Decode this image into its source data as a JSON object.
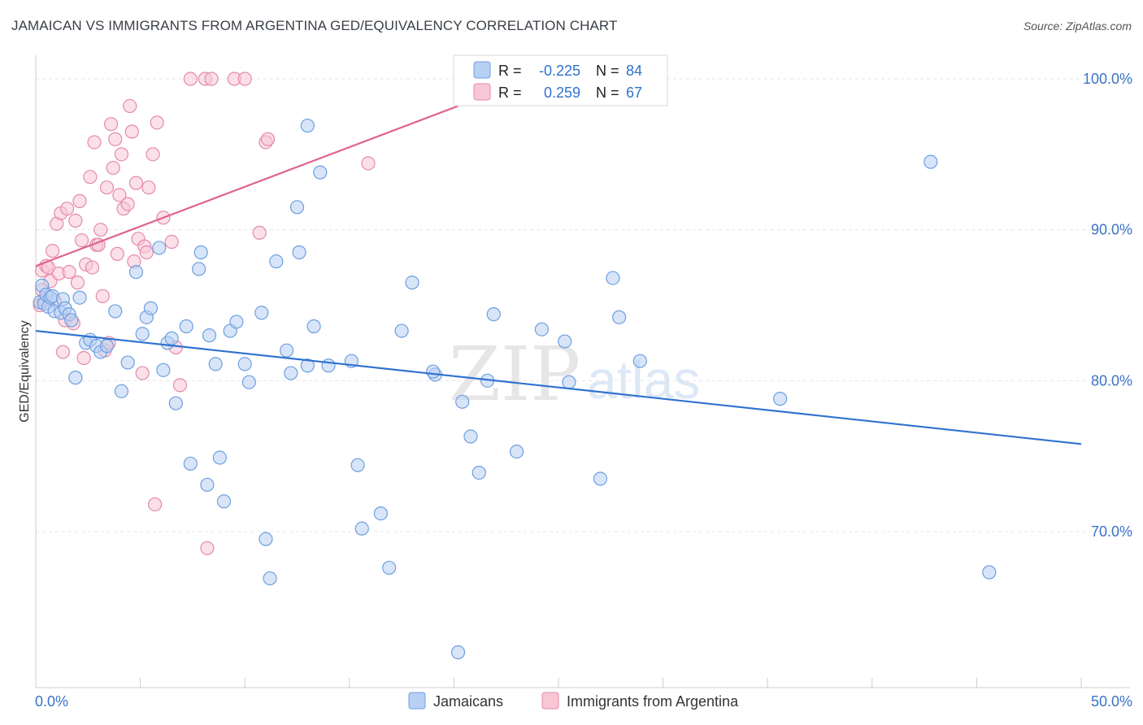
{
  "header": {
    "title": "JAMAICAN VS IMMIGRANTS FROM ARGENTINA GED/EQUIVALENCY CORRELATION CHART",
    "source": "Source: ZipAtlas.com"
  },
  "watermark": {
    "zip": "ZIP",
    "atlas": "atlas"
  },
  "colors": {
    "blue_fill": "#b8d0f3",
    "blue_stroke": "#6d9fe0",
    "blue_line": "#2f72d0",
    "pink_fill": "#f8c7d6",
    "pink_stroke": "#e48aa8",
    "pink_line": "#e0648e",
    "value_text": "#2f72d0"
  },
  "legend_box": {
    "rows": [
      {
        "r_label": "R =",
        "r_value": "-0.225",
        "n_label": "N =",
        "n_value": "84"
      },
      {
        "r_label": "R =",
        "r_value": "0.259",
        "n_label": "N =",
        "n_value": "67"
      }
    ]
  },
  "chart_data": {
    "type": "scatter",
    "title": "JAMAICAN VS IMMIGRANTS FROM ARGENTINA GED/EQUIVALENCY CORRELATION CHART",
    "xlabel": "",
    "ylabel": "GED/Equivalency",
    "xlim": [
      0,
      50
    ],
    "ylim": [
      60,
      102
    ],
    "x_tick_labels": [
      "0.0%",
      "50.0%"
    ],
    "y_ticks": [
      70,
      80,
      90,
      100
    ],
    "y_tick_labels": [
      "70.0%",
      "80.0%",
      "90.0%",
      "100.0%"
    ],
    "grid": true,
    "legend_position": "bottom",
    "series": [
      {
        "name": "Jamaicans",
        "color": "#6d9fe0",
        "R": -0.225,
        "N": 84,
        "trend": {
          "x": [
            0,
            50
          ],
          "y": [
            83.3,
            75.8
          ]
        },
        "points": [
          [
            0.2,
            85.2
          ],
          [
            0.3,
            86.3
          ],
          [
            0.4,
            85.1
          ],
          [
            0.5,
            85.7
          ],
          [
            0.6,
            84.9
          ],
          [
            0.7,
            85.5
          ],
          [
            0.8,
            85.6
          ],
          [
            0.9,
            84.6
          ],
          [
            1.2,
            84.5
          ],
          [
            1.3,
            85.4
          ],
          [
            1.4,
            84.8
          ],
          [
            1.6,
            84.4
          ],
          [
            1.7,
            84.0
          ],
          [
            1.9,
            80.2
          ],
          [
            2.1,
            85.5
          ],
          [
            2.4,
            82.5
          ],
          [
            2.6,
            82.7
          ],
          [
            2.9,
            82.3
          ],
          [
            3.1,
            81.9
          ],
          [
            3.4,
            82.3
          ],
          [
            3.8,
            84.6
          ],
          [
            4.1,
            79.3
          ],
          [
            4.4,
            81.2
          ],
          [
            4.8,
            87.2
          ],
          [
            5.1,
            83.1
          ],
          [
            5.3,
            84.2
          ],
          [
            5.5,
            84.8
          ],
          [
            5.9,
            88.8
          ],
          [
            6.1,
            80.7
          ],
          [
            6.3,
            82.5
          ],
          [
            6.5,
            82.8
          ],
          [
            6.7,
            78.5
          ],
          [
            7.2,
            83.6
          ],
          [
            7.4,
            74.5
          ],
          [
            7.8,
            87.4
          ],
          [
            7.9,
            88.5
          ],
          [
            8.3,
            83.0
          ],
          [
            8.6,
            81.1
          ],
          [
            8.8,
            74.9
          ],
          [
            9.0,
            72.0
          ],
          [
            9.3,
            83.3
          ],
          [
            9.6,
            83.9
          ],
          [
            10.0,
            81.1
          ],
          [
            10.2,
            79.9
          ],
          [
            10.8,
            84.5
          ],
          [
            11.0,
            69.5
          ],
          [
            11.2,
            66.9
          ],
          [
            11.5,
            87.9
          ],
          [
            12.0,
            82.0
          ],
          [
            12.2,
            80.5
          ],
          [
            12.5,
            91.5
          ],
          [
            12.6,
            88.5
          ],
          [
            13.3,
            83.6
          ],
          [
            13.6,
            93.8
          ],
          [
            13.0,
            81.0
          ],
          [
            13.0,
            96.9
          ],
          [
            14.0,
            81.0
          ],
          [
            15.1,
            81.3
          ],
          [
            15.4,
            74.4
          ],
          [
            15.6,
            70.2
          ],
          [
            16.5,
            71.2
          ],
          [
            16.9,
            67.6
          ],
          [
            17.5,
            83.3
          ],
          [
            18.0,
            86.5
          ],
          [
            19.1,
            80.4
          ],
          [
            19.0,
            80.6
          ],
          [
            20.4,
            78.6
          ],
          [
            20.8,
            76.3
          ],
          [
            21.2,
            73.9
          ],
          [
            21.6,
            80.0
          ],
          [
            20.2,
            62.0
          ],
          [
            21.9,
            84.4
          ],
          [
            23.0,
            75.3
          ],
          [
            24.2,
            83.4
          ],
          [
            25.3,
            82.6
          ],
          [
            25.5,
            79.9
          ],
          [
            27.0,
            73.5
          ],
          [
            27.6,
            86.8
          ],
          [
            27.9,
            84.2
          ],
          [
            28.9,
            81.3
          ],
          [
            35.6,
            78.8
          ],
          [
            42.8,
            94.5
          ],
          [
            45.6,
            67.3
          ],
          [
            8.2,
            73.1
          ]
        ]
      },
      {
        "name": "Immigrants from Argentina",
        "color": "#e48aa8",
        "R": 0.259,
        "N": 67,
        "trend": {
          "x": [
            0,
            20.2
          ],
          "y": [
            87.6,
            98.2
          ]
        },
        "points": [
          [
            0.2,
            85.0
          ],
          [
            0.3,
            86.0
          ],
          [
            0.3,
            87.3
          ],
          [
            0.4,
            85.3
          ],
          [
            0.5,
            87.6
          ],
          [
            0.6,
            87.5
          ],
          [
            0.7,
            86.6
          ],
          [
            0.8,
            88.6
          ],
          [
            0.9,
            85.3
          ],
          [
            1.0,
            90.4
          ],
          [
            1.1,
            87.1
          ],
          [
            1.2,
            91.1
          ],
          [
            1.3,
            81.9
          ],
          [
            1.4,
            84.0
          ],
          [
            1.5,
            91.4
          ],
          [
            1.6,
            87.2
          ],
          [
            1.8,
            83.8
          ],
          [
            1.9,
            90.6
          ],
          [
            2.0,
            86.5
          ],
          [
            2.1,
            91.9
          ],
          [
            2.2,
            89.3
          ],
          [
            2.3,
            81.5
          ],
          [
            2.4,
            87.7
          ],
          [
            2.6,
            93.5
          ],
          [
            2.7,
            87.5
          ],
          [
            2.8,
            95.8
          ],
          [
            2.9,
            89.0
          ],
          [
            3.0,
            89.0
          ],
          [
            3.1,
            90.0
          ],
          [
            3.2,
            85.6
          ],
          [
            3.3,
            82.0
          ],
          [
            3.4,
            92.8
          ],
          [
            3.5,
            82.5
          ],
          [
            3.6,
            97.0
          ],
          [
            3.7,
            94.1
          ],
          [
            3.8,
            96.0
          ],
          [
            3.9,
            88.4
          ],
          [
            4.0,
            92.3
          ],
          [
            4.1,
            95.0
          ],
          [
            4.2,
            91.4
          ],
          [
            4.4,
            91.7
          ],
          [
            4.5,
            98.2
          ],
          [
            4.6,
            96.5
          ],
          [
            4.7,
            87.9
          ],
          [
            4.8,
            93.1
          ],
          [
            4.9,
            89.4
          ],
          [
            5.1,
            80.5
          ],
          [
            5.2,
            88.9
          ],
          [
            5.3,
            88.5
          ],
          [
            5.4,
            92.8
          ],
          [
            5.6,
            95.0
          ],
          [
            5.8,
            97.1
          ],
          [
            5.7,
            71.8
          ],
          [
            6.1,
            90.8
          ],
          [
            6.5,
            89.2
          ],
          [
            6.7,
            82.2
          ],
          [
            6.9,
            79.7
          ],
          [
            7.4,
            100.0
          ],
          [
            8.1,
            100.0
          ],
          [
            8.4,
            100.0
          ],
          [
            8.2,
            68.9
          ],
          [
            9.5,
            100.0
          ],
          [
            10.0,
            100.0
          ],
          [
            10.7,
            89.8
          ],
          [
            11.0,
            95.8
          ],
          [
            11.1,
            96.0
          ],
          [
            15.9,
            94.4
          ]
        ]
      }
    ]
  }
}
